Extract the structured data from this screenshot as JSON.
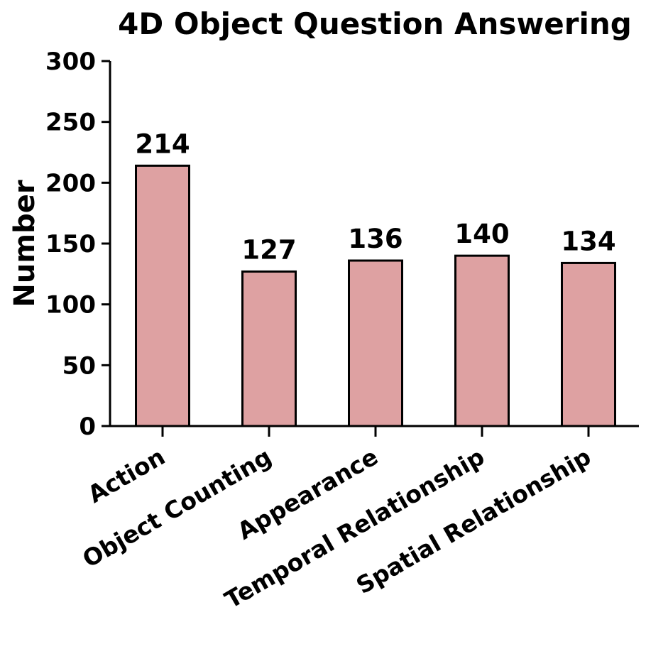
{
  "chart_data": {
    "type": "bar",
    "title": "4D Object Question Answering",
    "xlabel": "",
    "ylabel": "Number",
    "categories": [
      "Action",
      "Object Counting",
      "Appearance",
      "Temporal Relationship",
      "Spatial Relationship"
    ],
    "values": [
      214,
      127,
      136,
      140,
      134
    ],
    "data_labels": [
      "214",
      "127",
      "136",
      "140",
      "134"
    ],
    "ylim": [
      0,
      300
    ],
    "yticks": [
      0,
      50,
      100,
      150,
      200,
      250,
      300
    ],
    "ytick_labels": [
      "0",
      "50",
      "100",
      "150",
      "200",
      "250",
      "300"
    ],
    "grid": false,
    "legend": "none",
    "bar_color": "#dea1a2",
    "bar_edge_color": "#000000"
  }
}
